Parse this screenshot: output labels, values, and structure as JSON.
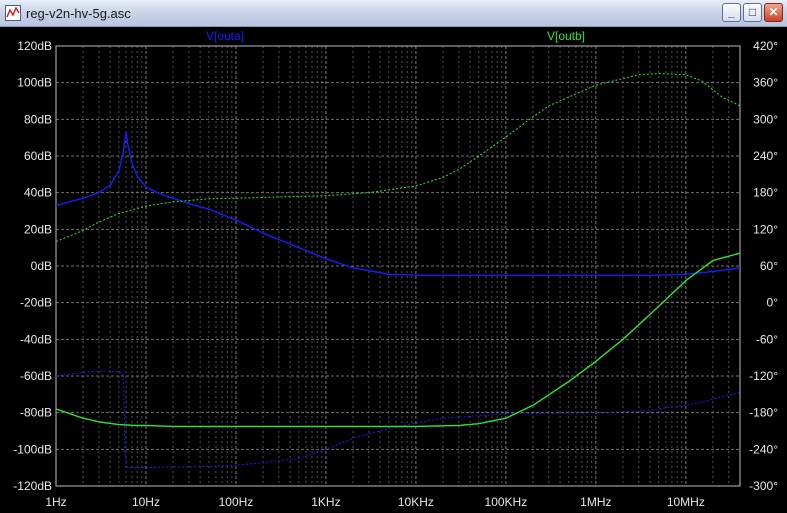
{
  "window": {
    "title": "reg-v2n-hv-5g.asc",
    "buttons": {
      "minimize": "_",
      "maximize": "□",
      "close": "✕"
    }
  },
  "colors": {
    "background": "#000000",
    "grid": "#8c8c8c",
    "axis_text": "#e8e8e8",
    "trace_outa": "#1a1aff",
    "trace_outb": "#2ee62e"
  },
  "chart_data": {
    "type": "line",
    "title": "",
    "x_scale": "log",
    "xlim": [
      1,
      40000000
    ],
    "x_ticks": [
      {
        "value": 1,
        "label": "1Hz"
      },
      {
        "value": 10,
        "label": "10Hz"
      },
      {
        "value": 100,
        "label": "100Hz"
      },
      {
        "value": 1000,
        "label": "1KHz"
      },
      {
        "value": 10000,
        "label": "10KHz"
      },
      {
        "value": 100000,
        "label": "100KHz"
      },
      {
        "value": 1000000,
        "label": "1MHz"
      },
      {
        "value": 10000000,
        "label": "10MHz"
      }
    ],
    "y_left": {
      "unit": "dB",
      "range": [
        -120,
        120
      ],
      "ticks": [
        {
          "value": 120,
          "label": "120dB"
        },
        {
          "value": 100,
          "label": "100dB"
        },
        {
          "value": 80,
          "label": "80dB"
        },
        {
          "value": 60,
          "label": "60dB"
        },
        {
          "value": 40,
          "label": "40dB"
        },
        {
          "value": 20,
          "label": "20dB"
        },
        {
          "value": 0,
          "label": "0dB"
        },
        {
          "value": -20,
          "label": "-20dB"
        },
        {
          "value": -40,
          "label": "-40dB"
        },
        {
          "value": -60,
          "label": "-60dB"
        },
        {
          "value": -80,
          "label": "-80dB"
        },
        {
          "value": -100,
          "label": "-100dB"
        },
        {
          "value": -120,
          "label": "-120dB"
        }
      ]
    },
    "y_right": {
      "unit": "°",
      "range": [
        -300,
        420
      ],
      "ticks": [
        {
          "value": 420,
          "label": "420°"
        },
        {
          "value": 360,
          "label": "360°"
        },
        {
          "value": 300,
          "label": "300°"
        },
        {
          "value": 240,
          "label": "240°"
        },
        {
          "value": 180,
          "label": "180°"
        },
        {
          "value": 120,
          "label": "120°"
        },
        {
          "value": 60,
          "label": "60°"
        },
        {
          "value": 0,
          "label": "0°"
        },
        {
          "value": -60,
          "label": "-60°"
        },
        {
          "value": -120,
          "label": "-120°"
        },
        {
          "value": -180,
          "label": "-180°"
        },
        {
          "value": -240,
          "label": "-240°"
        },
        {
          "value": -300,
          "label": "-300°"
        }
      ]
    },
    "grid": true,
    "legend": "top-center",
    "series": [
      {
        "name": "V[outa]",
        "color": "#1a1aff",
        "magnitude": {
          "x": [
            1,
            2,
            3,
            4,
            5,
            5.6,
            6,
            6.3,
            7,
            8,
            10,
            15,
            20,
            30,
            50,
            100,
            200,
            500,
            1000,
            2000,
            5000,
            10000,
            20000,
            100000,
            1000000,
            5000000,
            10000000,
            20000000,
            40000000
          ],
          "y": [
            33,
            37,
            40,
            44,
            52,
            62,
            73,
            66,
            56,
            49,
            43,
            39,
            37,
            34,
            31,
            25,
            18,
            10,
            4,
            -1,
            -4.5,
            -5,
            -5,
            -5,
            -5,
            -5,
            -4.5,
            -3,
            -1
          ]
        },
        "phase": {
          "x": [
            1,
            2,
            3,
            4,
            5,
            5.5,
            5.7,
            5.8,
            6.2,
            7,
            10,
            20,
            50,
            100,
            200,
            500,
            1000,
            2000,
            5000,
            10000,
            20000,
            50000,
            100000,
            300000,
            1000000,
            3000000,
            10000000,
            20000000,
            40000000
          ],
          "y": [
            -120,
            -114,
            -112,
            -112,
            -113,
            -116,
            -145,
            -245,
            -269,
            -270,
            -270,
            -269,
            -268,
            -266,
            -262,
            -255,
            -240,
            -222,
            -206,
            -197,
            -189,
            -185,
            -182,
            -181,
            -180,
            -178,
            -168,
            -158,
            -147
          ]
        }
      },
      {
        "name": "V[outb]",
        "color": "#2ee62e",
        "magnitude": {
          "x": [
            1,
            2,
            3,
            5,
            8,
            10,
            20,
            50,
            100,
            1000,
            10000,
            30000,
            50000,
            100000,
            200000,
            500000,
            1000000,
            2000000,
            5000000,
            10000000,
            20000000,
            40000000
          ],
          "y": [
            -78,
            -83,
            -85,
            -86.5,
            -87,
            -87,
            -87.5,
            -87.5,
            -87.5,
            -87.5,
            -87.5,
            -87,
            -86,
            -83,
            -76,
            -63,
            -52,
            -40,
            -22,
            -8,
            3,
            7
          ]
        },
        "phase": {
          "x": [
            1,
            2,
            3,
            5,
            10,
            20,
            50,
            100,
            300,
            1000,
            3000,
            10000,
            20000,
            30000,
            50000,
            100000,
            200000,
            300000,
            1000000,
            3000000,
            5000000,
            10000000,
            15000000,
            25000000,
            40000000
          ],
          "y": [
            100,
            118,
            132,
            146,
            158,
            165,
            170,
            171,
            173,
            175,
            180,
            191,
            205,
            218,
            240,
            271,
            304,
            322,
            356,
            373,
            375,
            373,
            363,
            337,
            322
          ]
        }
      }
    ]
  }
}
